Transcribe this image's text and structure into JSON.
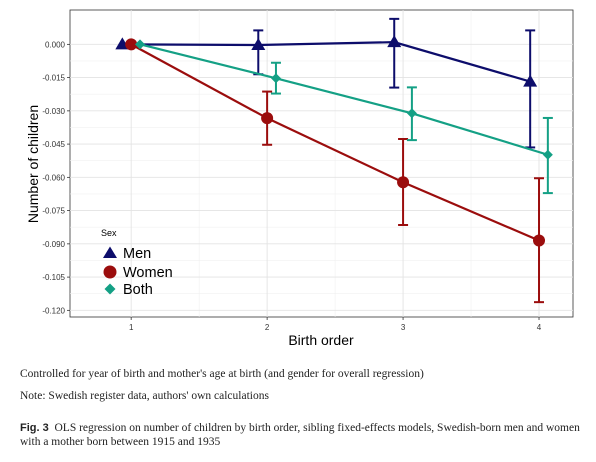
{
  "chart_data": {
    "type": "line",
    "xlabel": "Birth order",
    "ylabel": "Number of children",
    "x": [
      1,
      2,
      3,
      4
    ],
    "xlim": [
      0.55,
      4.25
    ],
    "ylim": [
      -0.123,
      0.0155
    ],
    "y_ticks": [
      0.0,
      -0.015,
      -0.03,
      -0.045,
      -0.06,
      -0.075,
      -0.09,
      -0.105,
      -0.12
    ],
    "y_tick_labels": [
      "0.000",
      "-0.015",
      "-0.030",
      "-0.045",
      "-0.060",
      "-0.075",
      "-0.090",
      "-0.105",
      "-0.120"
    ],
    "x_ticks": [
      1,
      2,
      3,
      4
    ],
    "x_tick_labels": [
      "1",
      "2",
      "3",
      "4"
    ],
    "grid": true,
    "legend": {
      "title": "Sex",
      "position": "bottom-left, inside plot"
    },
    "series": [
      {
        "name": "Men",
        "color": "#0d0d6b",
        "marker": "triangle",
        "x_offset": -0.065,
        "values": [
          0.0,
          -0.0003,
          0.001,
          -0.0168
        ],
        "ci_low": [
          null,
          -0.0135,
          -0.0195,
          -0.0465
        ],
        "ci_high": [
          null,
          0.0063,
          0.0115,
          0.0063
        ]
      },
      {
        "name": "Women",
        "color": "#9b0d0d",
        "marker": "circle",
        "x_offset": 0.0,
        "values": [
          0.0,
          -0.0333,
          -0.0622,
          -0.0885
        ],
        "ci_low": [
          null,
          -0.0453,
          -0.0815,
          -0.1163
        ],
        "ci_high": [
          null,
          -0.0213,
          -0.0427,
          -0.0604
        ]
      },
      {
        "name": "Both",
        "color": "#14a085",
        "marker": "diamond",
        "x_offset": 0.065,
        "values": [
          0.0,
          -0.0153,
          -0.0311,
          -0.0498
        ],
        "ci_low": [
          null,
          -0.0222,
          -0.0432,
          -0.0671
        ],
        "ci_high": [
          null,
          -0.0083,
          -0.0194,
          -0.0332
        ]
      }
    ]
  },
  "notes": {
    "controls": "Controlled for year of birth and mother's age at birth (and gender for overall regression)",
    "source": "Note: Swedish register data, authors' own calculations"
  },
  "caption": {
    "label": "Fig. 3",
    "text": "OLS regression on number of children by birth order, sibling fixed-effects models, Swedish-born men and women with a mother born between 1915 and 1935"
  }
}
